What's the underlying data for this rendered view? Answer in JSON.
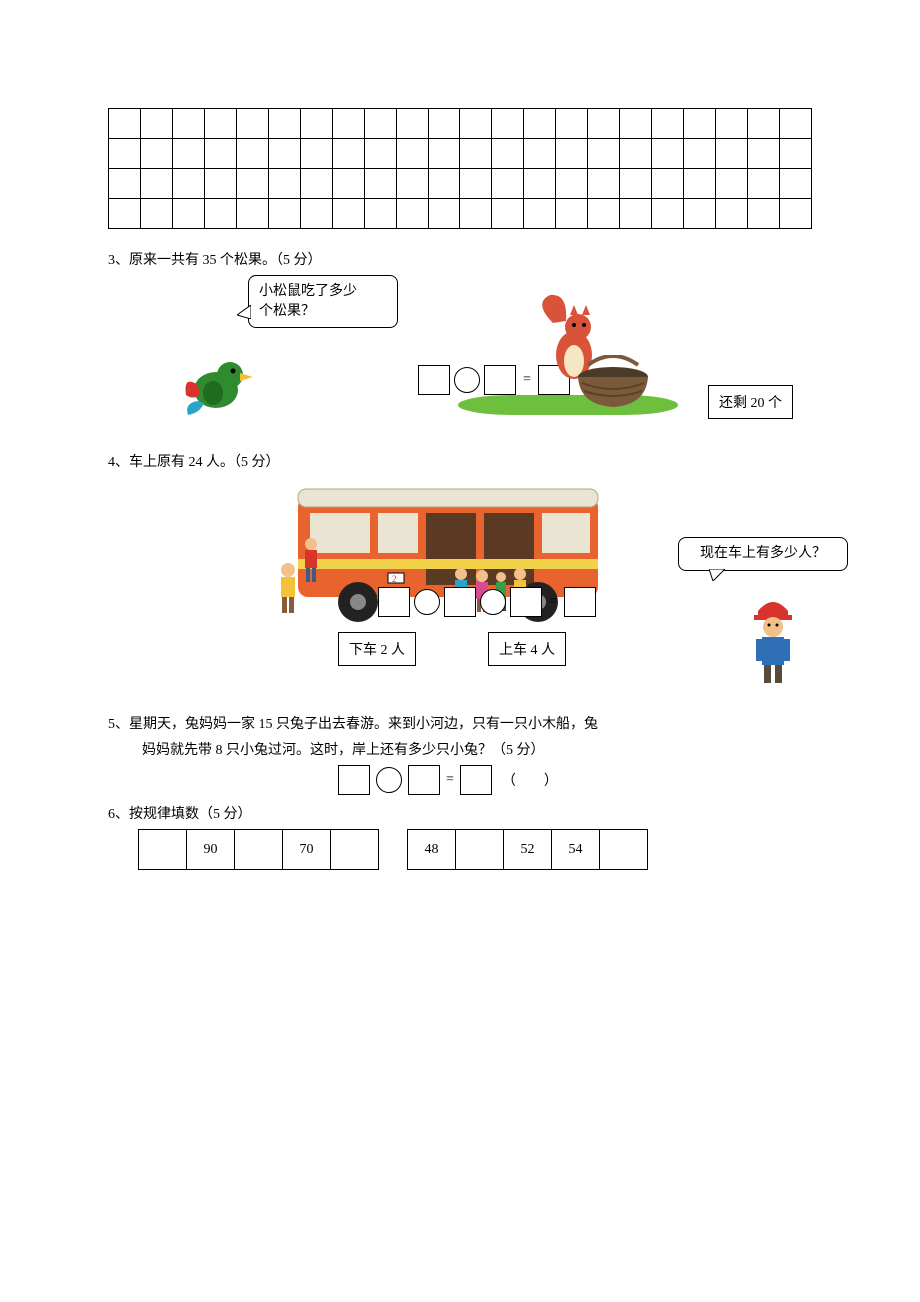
{
  "grid": {
    "rows": 4,
    "cols": 22
  },
  "q3": {
    "title": "3、原来一共有 35 个松果。（5 分）",
    "bubble": "小松鼠吃了多少\n个松果？",
    "remain_label": "还剩 20 个",
    "colors": {
      "bird_body": "#2e8b2e",
      "bird_beak": "#f2c037",
      "squirrel_body": "#d9533a",
      "squirrel_belly": "#f6e6c4",
      "basket": "#7a5a3a",
      "grass": "#6fbf3f"
    }
  },
  "q4": {
    "title": "4、车上原有 24 人。（5 分）",
    "off_label": "下车 2 人",
    "on_label": "上车 4 人",
    "bubble": "现在车上有多少人？",
    "colors": {
      "bus_body": "#e8632d",
      "bus_window": "#e9e5d2",
      "bus_stripe": "#f2d24a",
      "wheel": "#222222",
      "person1": "#f4c23a",
      "person2": "#2aa5c9",
      "person3": "#d94b8c",
      "person4": "#3a9b4a",
      "worker_hat": "#d9342c",
      "worker_shirt": "#2f6fb5"
    }
  },
  "q5": {
    "line1": "5、星期天，兔妈妈一家 15 只兔子出去春游。来到小河边，只有一只小木船，兔",
    "line2": "妈妈就先带 8 只小兔过河。这时，岸上还有多少只小兔？（5 分）",
    "equals": "=",
    "paren": "（　　）"
  },
  "q6": {
    "title": "6、按规律填数（5 分）",
    "seq1": [
      "",
      "90",
      "",
      "70",
      ""
    ],
    "seq2": [
      "48",
      "",
      "52",
      "54",
      ""
    ]
  }
}
